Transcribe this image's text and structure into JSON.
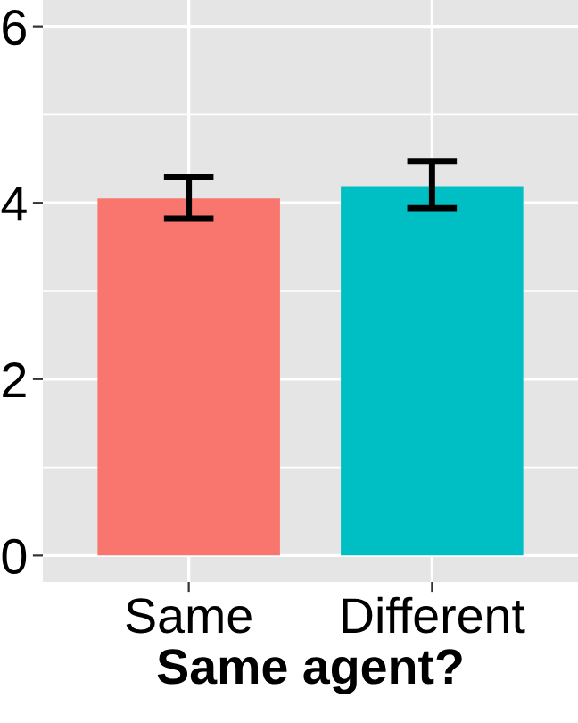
{
  "chart_data": {
    "type": "bar",
    "xlabel": "Same agent?",
    "categories": [
      "Same",
      "Different"
    ],
    "values": [
      4.05,
      4.19
    ],
    "errors": [
      [
        3.82,
        4.29
      ],
      [
        3.94,
        4.47
      ]
    ],
    "colors": [
      "#f8766d",
      "#00bfc4"
    ],
    "ylim": [
      -0.3,
      6.3
    ],
    "yticks": [
      0,
      2,
      4,
      6
    ],
    "grid": true
  }
}
